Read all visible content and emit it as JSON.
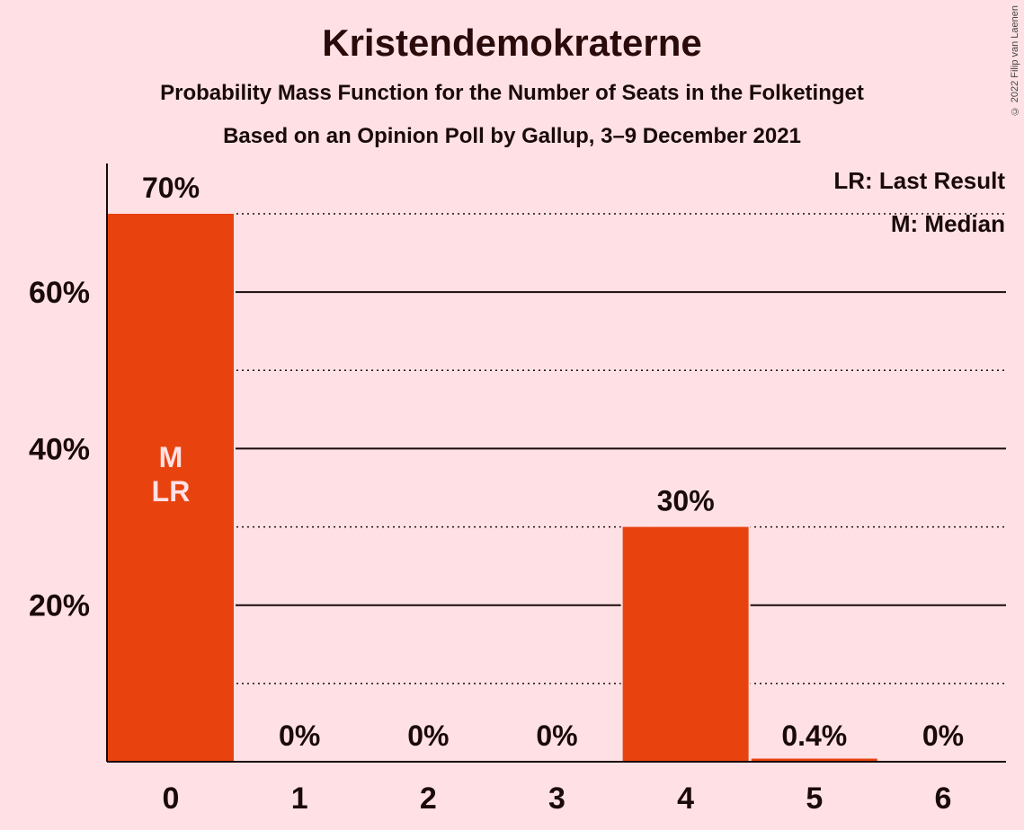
{
  "chart_data": {
    "type": "bar",
    "title": "Kristendemokraterne",
    "subtitle": "Probability Mass Function for the Number of Seats in the Folketinget",
    "subtitle2": "Based on an Opinion Poll by Gallup, 3–9 December 2021",
    "categories": [
      "0",
      "1",
      "2",
      "3",
      "4",
      "5",
      "6"
    ],
    "values": [
      70,
      0,
      0,
      0,
      30,
      0.4,
      0
    ],
    "value_labels": [
      "70%",
      "0%",
      "0%",
      "0%",
      "30%",
      "0.4%",
      "0%"
    ],
    "bar_annotations": [
      [
        "M",
        "LR"
      ],
      [],
      [],
      [],
      [],
      [],
      []
    ],
    "y_ticks": [
      20,
      40,
      60
    ],
    "y_tick_labels": [
      "20%",
      "40%",
      "60%"
    ],
    "y_minor_dotted": [
      10,
      30,
      50,
      70
    ],
    "ylim": [
      0,
      76
    ],
    "bar_color": "#E8430F",
    "legend": [
      "LR: Last Result",
      "M: Median"
    ],
    "copyright": "© 2022 Filip van Laenen"
  }
}
